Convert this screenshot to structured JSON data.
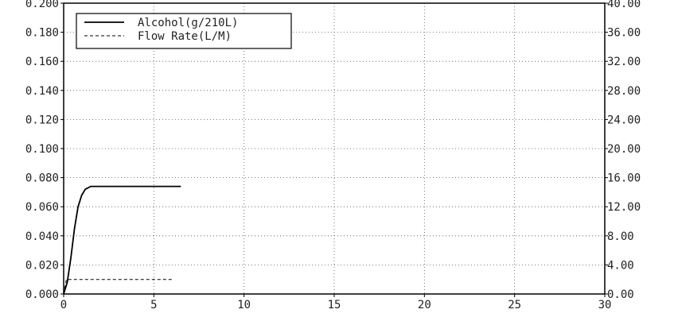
{
  "chart_data": {
    "type": "line",
    "title": "",
    "xlabel": "",
    "ylabel": "",
    "ylabel_right": "",
    "x_ticks": [
      "0",
      "5",
      "10",
      "15",
      "20",
      "25",
      "30"
    ],
    "y_left_ticks": [
      "0.000",
      "0.020",
      "0.040",
      "0.060",
      "0.080",
      "0.100",
      "0.120",
      "0.140",
      "0.160",
      "0.180",
      "0.200"
    ],
    "y_right_ticks": [
      "0.00",
      "4.00",
      "8.00",
      "12.00",
      "16.00",
      "20.00",
      "24.00",
      "28.00",
      "32.00",
      "36.00",
      "40.00"
    ],
    "xlim": [
      0,
      30
    ],
    "ylim_left": [
      0,
      0.2
    ],
    "ylim_right": [
      0,
      40
    ],
    "grid": true,
    "legend_position": "top-left",
    "series": [
      {
        "name": "Alcohol(g/210L)",
        "axis": "left",
        "style": "solid",
        "x": [
          0,
          0.2,
          0.4,
          0.6,
          0.8,
          1.0,
          1.2,
          1.5,
          2,
          3,
          4,
          5,
          6,
          6.5
        ],
        "y": [
          0.0,
          0.008,
          0.025,
          0.045,
          0.06,
          0.068,
          0.072,
          0.074,
          0.074,
          0.074,
          0.074,
          0.074,
          0.074,
          0.074
        ]
      },
      {
        "name": "Flow Rate(L/M)",
        "axis": "right",
        "style": "dashed",
        "x": [
          0,
          0.15,
          0.3,
          1,
          2,
          3,
          4,
          5,
          6
        ],
        "y": [
          0.0,
          2.0,
          2.0,
          2.0,
          2.0,
          2.0,
          2.0,
          2.0,
          2.0
        ]
      }
    ]
  }
}
